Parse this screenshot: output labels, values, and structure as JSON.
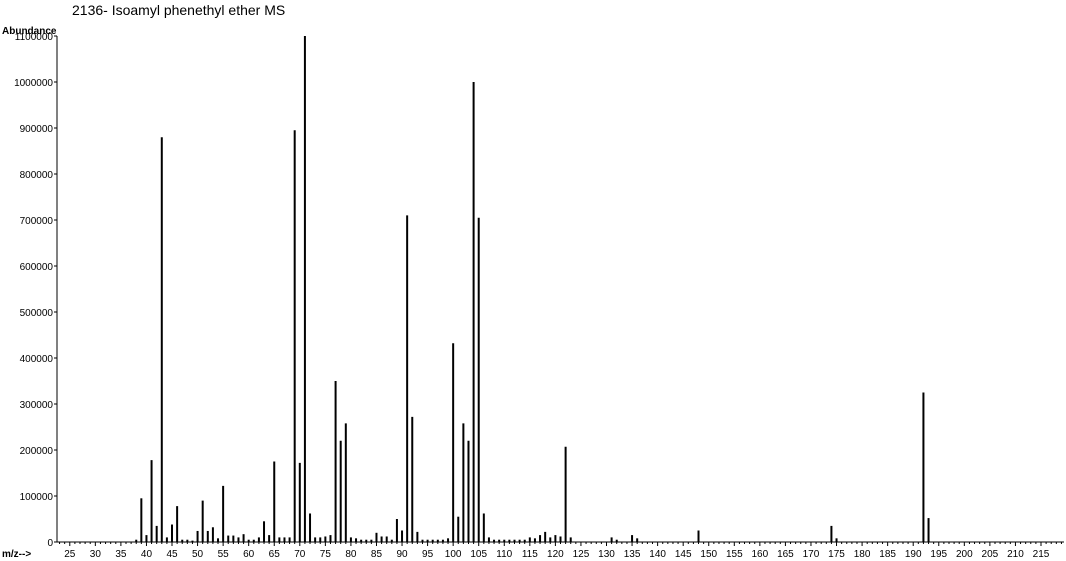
{
  "chart_data": {
    "type": "bar",
    "title": "2136- Isoamyl phenethyl ether MS",
    "ylabel": "Abundance",
    "xlabel": "m/z-->",
    "xlim": [
      22.5,
      219.5
    ],
    "ylim": [
      0,
      1100000
    ],
    "y_ticks": [
      0,
      100000,
      200000,
      300000,
      400000,
      500000,
      600000,
      700000,
      800000,
      900000,
      1000000,
      1100000
    ],
    "x_ticks": [
      25,
      30,
      35,
      40,
      45,
      50,
      55,
      60,
      65,
      70,
      75,
      80,
      85,
      90,
      95,
      100,
      105,
      110,
      115,
      120,
      125,
      130,
      135,
      140,
      145,
      150,
      155,
      160,
      165,
      170,
      175,
      180,
      185,
      190,
      195,
      200,
      205,
      210,
      215
    ],
    "grid": false,
    "x": [
      38,
      39,
      40,
      41,
      42,
      43,
      44,
      45,
      46,
      47,
      48,
      49,
      50,
      51,
      52,
      53,
      54,
      55,
      56,
      57,
      58,
      59,
      60,
      61,
      62,
      63,
      64,
      65,
      66,
      67,
      68,
      69,
      70,
      71,
      72,
      73,
      74,
      75,
      76,
      77,
      78,
      79,
      80,
      81,
      82,
      83,
      84,
      85,
      86,
      87,
      88,
      89,
      90,
      91,
      92,
      93,
      94,
      95,
      96,
      97,
      98,
      99,
      100,
      101,
      102,
      103,
      104,
      105,
      106,
      107,
      108,
      109,
      110,
      111,
      112,
      113,
      114,
      115,
      116,
      117,
      118,
      119,
      120,
      121,
      122,
      123,
      131,
      132,
      135,
      136,
      148,
      174,
      175,
      192,
      193
    ],
    "values": [
      5000,
      95000,
      15000,
      178000,
      35000,
      880000,
      10000,
      38000,
      78000,
      5000,
      5000,
      3000,
      24000,
      90000,
      24000,
      32000,
      8000,
      122000,
      14000,
      14000,
      10000,
      17000,
      5000,
      5000,
      10000,
      45000,
      15000,
      175000,
      10000,
      10000,
      10000,
      895000,
      172000,
      1110000,
      62000,
      10000,
      10000,
      12000,
      15000,
      350000,
      220000,
      258000,
      10000,
      8000,
      5000,
      5000,
      5000,
      20000,
      12000,
      12000,
      5000,
      50000,
      25000,
      710000,
      272000,
      22000,
      5000,
      5000,
      5000,
      5000,
      5000,
      8000,
      432000,
      55000,
      258000,
      220000,
      1000000,
      705000,
      62000,
      10000,
      5000,
      5000,
      5000,
      5000,
      5000,
      5000,
      5000,
      10000,
      8000,
      15000,
      22000,
      10000,
      15000,
      12000,
      207000,
      10000,
      10000,
      5000,
      15000,
      8000,
      25000,
      35000,
      8000,
      325000,
      52000
    ]
  }
}
